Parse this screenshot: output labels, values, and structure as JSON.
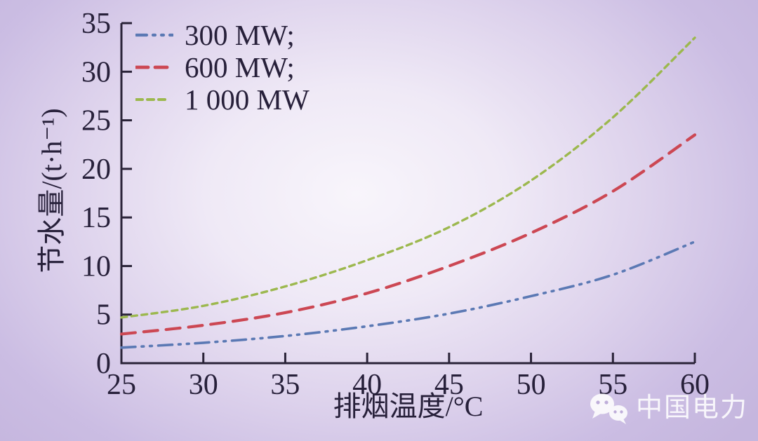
{
  "colors": {
    "background_edge": "#c5b6de",
    "background_center": "#f8f5fb",
    "axis": "#2a2338",
    "text": "#27203a",
    "watermark_text": "#ffffff"
  },
  "watermark": {
    "brand": "中国电力",
    "icon": "wechat-icon"
  },
  "chart_data": {
    "type": "line",
    "title": "",
    "xlabel": "排烟温度/°C",
    "ylabel": "节水量/(t·h⁻¹)",
    "xlim": [
      25,
      60
    ],
    "ylim": [
      0,
      35
    ],
    "x_ticks": [
      25,
      30,
      35,
      40,
      45,
      50,
      55,
      60
    ],
    "y_ticks": [
      0,
      5,
      10,
      15,
      20,
      25,
      30,
      35
    ],
    "grid": false,
    "legend_position": "top-left",
    "x": [
      25,
      30,
      35,
      40,
      45,
      50,
      55,
      60
    ],
    "series": [
      {
        "name": "300 MW",
        "label": "300 MW;",
        "color": "#5b79b4",
        "dash_style": "dash-dot-dot",
        "values": [
          1.6,
          2.1,
          2.8,
          3.8,
          5.1,
          6.9,
          9.1,
          12.5
        ]
      },
      {
        "name": "600 MW",
        "label": "600 MW;",
        "color": "#cc4753",
        "dash_style": "dashed",
        "values": [
          3.0,
          3.9,
          5.2,
          7.2,
          10.0,
          13.4,
          17.7,
          23.5
        ]
      },
      {
        "name": "1 000 MW",
        "label": "1 000 MW",
        "color": "#9cb84e",
        "dash_style": "dotted",
        "values": [
          4.7,
          5.9,
          7.9,
          10.6,
          14.0,
          18.8,
          25.3,
          33.5
        ]
      }
    ]
  }
}
